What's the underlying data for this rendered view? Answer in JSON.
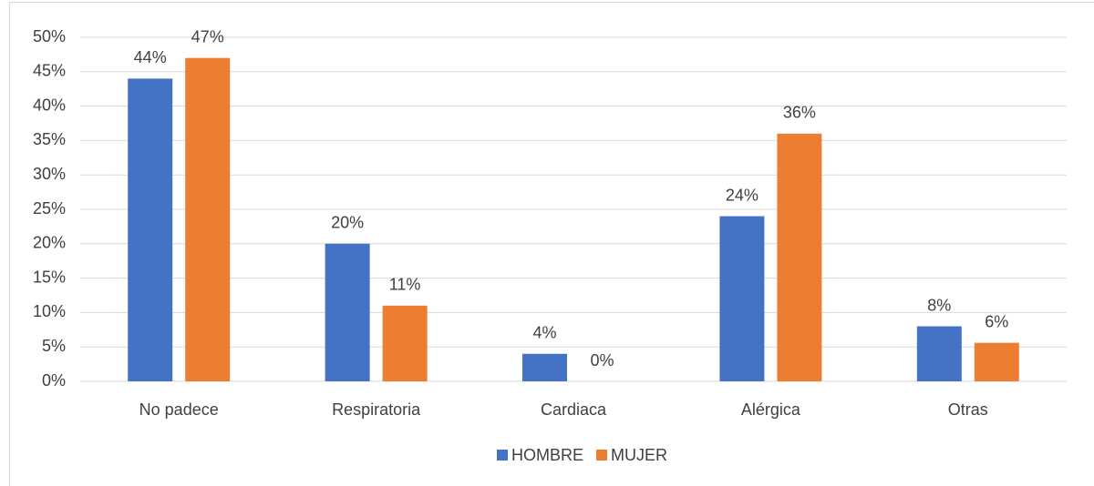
{
  "chart_data": {
    "type": "bar",
    "categories": [
      "No padece",
      "Respiratoria",
      "Cardiaca",
      "Alérgica",
      "Otras"
    ],
    "series": [
      {
        "name": "HOMBRE",
        "color": "#4472c4",
        "values": [
          44,
          20,
          4,
          24,
          8
        ],
        "value_labels": [
          "44%",
          "20%",
          "4%",
          "24%",
          "8%"
        ]
      },
      {
        "name": "MUJER",
        "color": "#ed7d31",
        "values": [
          47,
          11,
          0,
          36,
          5.6
        ],
        "value_labels": [
          "47%",
          "11%",
          "0%",
          "36%",
          "6%"
        ]
      }
    ],
    "ylim": [
      0,
      50
    ],
    "yticks": [
      {
        "value": 0,
        "label": "0%"
      },
      {
        "value": 5,
        "label": "5%"
      },
      {
        "value": 10,
        "label": "10%"
      },
      {
        "value": 15,
        "label": "15%"
      },
      {
        "value": 20,
        "label": "20%"
      },
      {
        "value": 25,
        "label": "25%"
      },
      {
        "value": 30,
        "label": "30%"
      },
      {
        "value": 35,
        "label": "35%"
      },
      {
        "value": 40,
        "label": "40%"
      },
      {
        "value": 45,
        "label": "45%"
      },
      {
        "value": 50,
        "label": "50%"
      }
    ],
    "grid": true,
    "legend": "bottom"
  }
}
